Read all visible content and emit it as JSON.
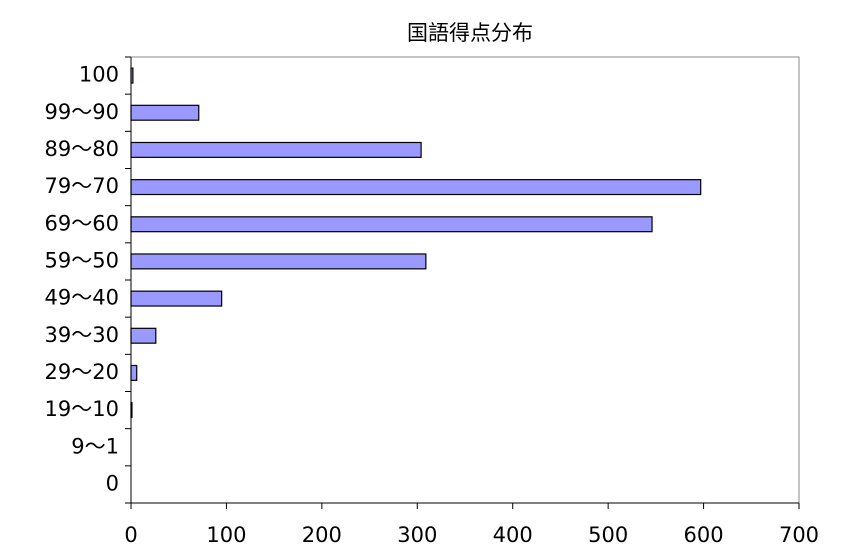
{
  "chart_data": {
    "type": "bar",
    "orientation": "horizontal",
    "title": "国語得点分布",
    "categories": [
      "100",
      "99～90",
      "89～80",
      "79～70",
      "69～60",
      "59～50",
      "49～40",
      "39～30",
      "29～20",
      "19～10",
      "9～1",
      "0"
    ],
    "values": [
      2,
      71,
      304,
      597,
      546,
      309,
      95,
      26,
      6,
      1,
      0,
      0
    ],
    "color": "#9999ff",
    "xlim": [
      0,
      700
    ],
    "xticks": [
      0,
      100,
      200,
      300,
      400,
      500,
      600,
      700
    ],
    "grid": false
  }
}
